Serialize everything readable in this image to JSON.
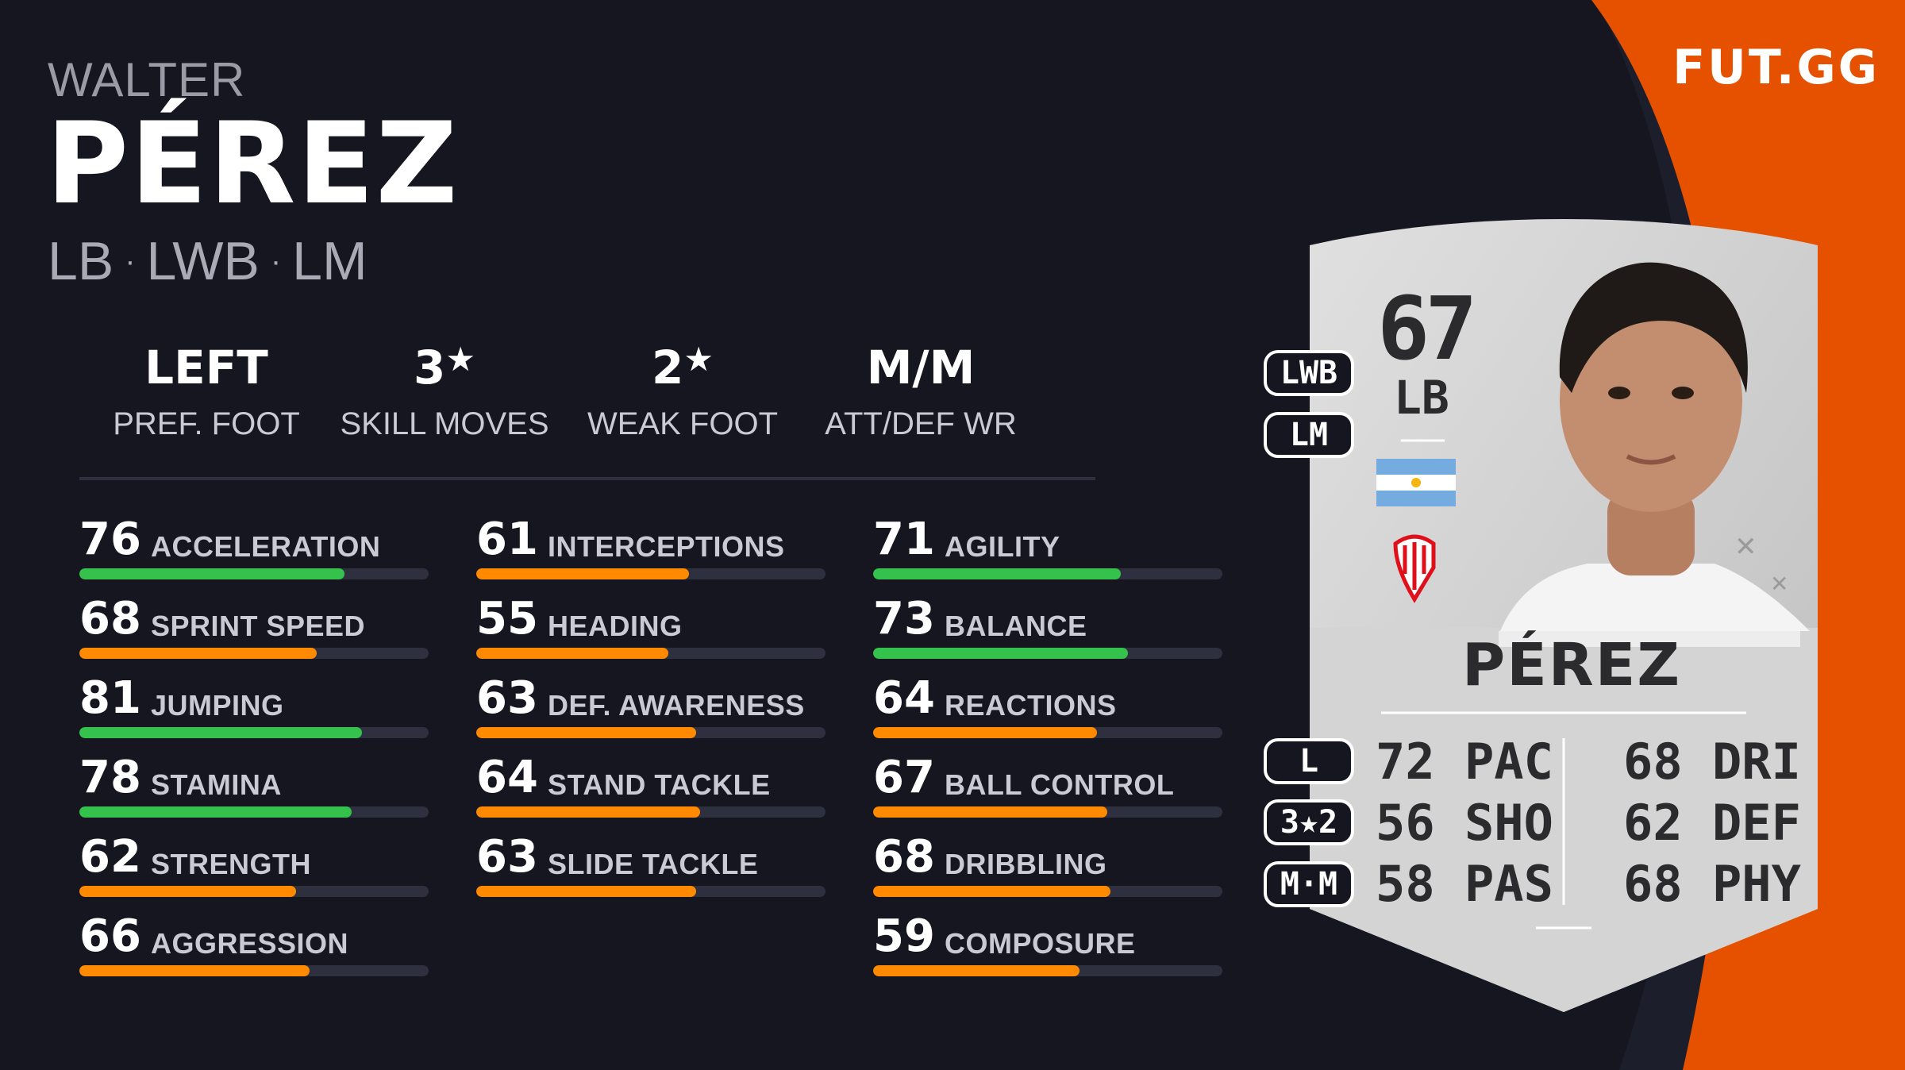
{
  "brand": {
    "logo_text": "FUT.GG",
    "accent": "#e65100"
  },
  "player": {
    "first_name": "WALTER",
    "last_name": "PÉREZ",
    "positions": [
      "LB",
      "LWB",
      "LM"
    ],
    "position_separator": "·"
  },
  "info": [
    {
      "value": "LEFT",
      "label": "PREF. FOOT",
      "star": ""
    },
    {
      "value": "3",
      "label": "SKILL MOVES",
      "star": "★"
    },
    {
      "value": "2",
      "label": "WEAK FOOT",
      "star": "★"
    },
    {
      "value": "M/M",
      "label": "ATT/DEF WR",
      "star": ""
    }
  ],
  "stats": {
    "col1": [
      {
        "value": 76,
        "name": "ACCELERATION",
        "color": "green"
      },
      {
        "value": 68,
        "name": "SPRINT SPEED",
        "color": "orange"
      },
      {
        "value": 81,
        "name": "JUMPING",
        "color": "green"
      },
      {
        "value": 78,
        "name": "STAMINA",
        "color": "green"
      },
      {
        "value": 62,
        "name": "STRENGTH",
        "color": "orange"
      },
      {
        "value": 66,
        "name": "AGGRESSION",
        "color": "orange"
      }
    ],
    "col2": [
      {
        "value": 61,
        "name": "INTERCEPTIONS",
        "color": "orange"
      },
      {
        "value": 55,
        "name": "HEADING",
        "color": "orange"
      },
      {
        "value": 63,
        "name": "DEF. AWARENESS",
        "color": "orange"
      },
      {
        "value": 64,
        "name": "STAND TACKLE",
        "color": "orange"
      },
      {
        "value": 63,
        "name": "SLIDE TACKLE",
        "color": "orange"
      }
    ],
    "col3": [
      {
        "value": 71,
        "name": "AGILITY",
        "color": "green"
      },
      {
        "value": 73,
        "name": "BALANCE",
        "color": "green"
      },
      {
        "value": 64,
        "name": "REACTIONS",
        "color": "orange"
      },
      {
        "value": 67,
        "name": "BALL CONTROL",
        "color": "orange"
      },
      {
        "value": 68,
        "name": "DRIBBLING",
        "color": "orange"
      },
      {
        "value": 59,
        "name": "COMPOSURE",
        "color": "orange"
      }
    ]
  },
  "card": {
    "rating": "67",
    "position": "LB",
    "name": "PÉREZ",
    "alt_positions": [
      "LWB",
      "LM"
    ],
    "badges": [
      "L",
      "3★2",
      "M·M"
    ],
    "left_stats": [
      {
        "value": "72",
        "label": "PAC"
      },
      {
        "value": "56",
        "label": "SHO"
      },
      {
        "value": "58",
        "label": "PAS"
      }
    ],
    "right_stats": [
      {
        "value": "68",
        "label": "DRI"
      },
      {
        "value": "62",
        "label": "DEF"
      },
      {
        "value": "68",
        "label": "PHY"
      }
    ]
  },
  "colors": {
    "background": "#151620",
    "green": "#34c24d",
    "orange": "#ff8a00",
    "track": "#2e3040",
    "card_silver": "#d6d6d6"
  }
}
